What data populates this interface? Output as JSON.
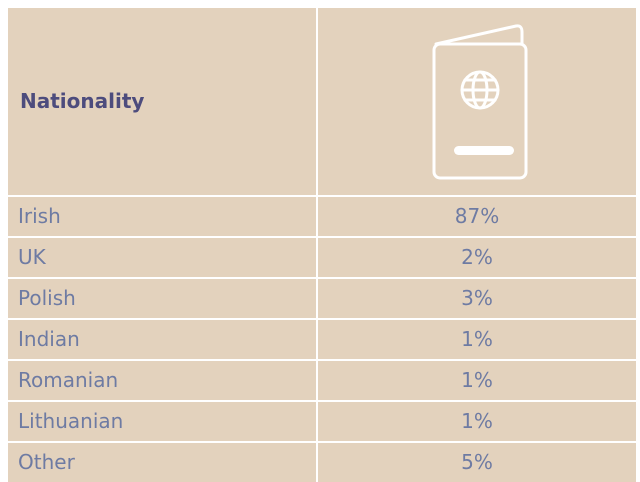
{
  "table": {
    "header": [
      "Nationality"
    ],
    "rows": [
      [
        "Irish",
        "87%"
      ],
      [
        "UK",
        "2%"
      ],
      [
        "Polish",
        "3%"
      ],
      [
        "Indian",
        "1%"
      ],
      [
        "Romanian",
        "1%"
      ],
      [
        "Lithuanian",
        "1%"
      ],
      [
        "Other",
        "5%"
      ]
    ]
  }
}
